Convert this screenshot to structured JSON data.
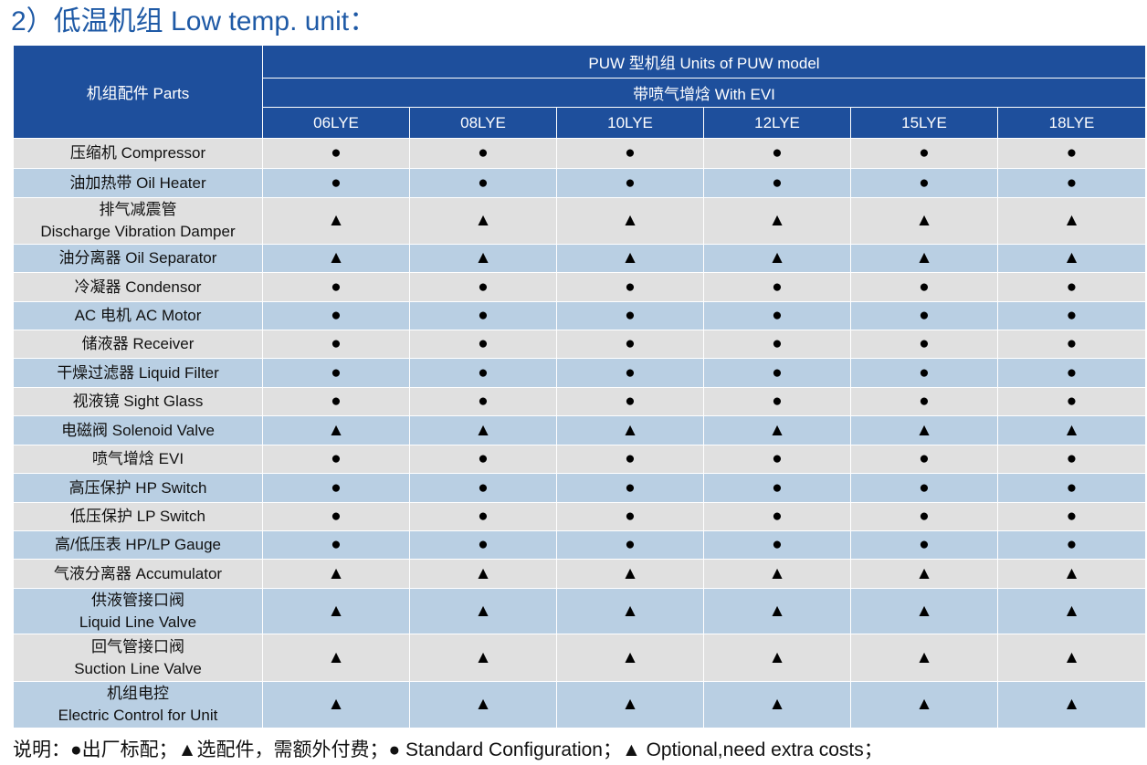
{
  "title": "2）低温机组 Low temp. unit：",
  "header": {
    "parts_label": "机组配件 Parts",
    "group_label": "PUW 型机组 Units of PUW model",
    "subgroup_label": "带喷气增焓  With EVI",
    "models": [
      "06LYE",
      "08LYE",
      "10LYE",
      "12LYE",
      "15LYE",
      "18LYE"
    ]
  },
  "symbols": {
    "standard": "●",
    "optional": "▲"
  },
  "rows": [
    {
      "name": [
        "压缩机 Compressor"
      ],
      "values": [
        "●",
        "●",
        "●",
        "●",
        "●",
        "●"
      ]
    },
    {
      "name": [
        "油加热带 Oil Heater"
      ],
      "values": [
        "●",
        "●",
        "●",
        "●",
        "●",
        "●"
      ]
    },
    {
      "name": [
        "排气减震管",
        "Discharge Vibration Damper"
      ],
      "values": [
        "▲",
        "▲",
        "▲",
        "▲",
        "▲",
        "▲"
      ]
    },
    {
      "name": [
        "油分离器 Oil Separator"
      ],
      "values": [
        "▲",
        "▲",
        "▲",
        "▲",
        "▲",
        "▲"
      ]
    },
    {
      "name": [
        "冷凝器 Condensor"
      ],
      "values": [
        "●",
        "●",
        "●",
        "●",
        "●",
        "●"
      ]
    },
    {
      "name": [
        "AC 电机 AC Motor"
      ],
      "values": [
        "●",
        "●",
        "●",
        "●",
        "●",
        "●"
      ]
    },
    {
      "name": [
        "储液器  Receiver"
      ],
      "values": [
        "●",
        "●",
        "●",
        "●",
        "●",
        "●"
      ]
    },
    {
      "name": [
        "干燥过滤器  Liquid Filter"
      ],
      "values": [
        "●",
        "●",
        "●",
        "●",
        "●",
        "●"
      ]
    },
    {
      "name": [
        "视液镜 Sight Glass"
      ],
      "values": [
        "●",
        "●",
        "●",
        "●",
        "●",
        "●"
      ]
    },
    {
      "name": [
        "电磁阀 Solenoid Valve"
      ],
      "values": [
        "▲",
        "▲",
        "▲",
        "▲",
        "▲",
        "▲"
      ]
    },
    {
      "name": [
        "喷气增焓  EVI"
      ],
      "values": [
        "●",
        "●",
        "●",
        "●",
        "●",
        "●"
      ]
    },
    {
      "name": [
        "高压保护 HP Switch"
      ],
      "values": [
        "●",
        "●",
        "●",
        "●",
        "●",
        "●"
      ]
    },
    {
      "name": [
        "低压保护 LP Switch"
      ],
      "values": [
        "●",
        "●",
        "●",
        "●",
        "●",
        "●"
      ]
    },
    {
      "name": [
        "高/低压表 HP/LP Gauge"
      ],
      "values": [
        "●",
        "●",
        "●",
        "●",
        "●",
        "●"
      ]
    },
    {
      "name": [
        "气液分离器 Accumulator"
      ],
      "values": [
        "▲",
        "▲",
        "▲",
        "▲",
        "▲",
        "▲"
      ]
    },
    {
      "name": [
        "供液管接口阀",
        "Liquid Line Valve"
      ],
      "values": [
        "▲",
        "▲",
        "▲",
        "▲",
        "▲",
        "▲"
      ]
    },
    {
      "name": [
        "回气管接口阀",
        "Suction Line Valve"
      ],
      "values": [
        "▲",
        "▲",
        "▲",
        "▲",
        "▲",
        "▲"
      ]
    },
    {
      "name": [
        "机组电控",
        "Electric Control for Unit"
      ],
      "values": [
        "▲",
        "▲",
        "▲",
        "▲",
        "▲",
        "▲"
      ]
    }
  ],
  "note": "说明：●出厂标配；▲选配件，需额外付费；● Standard Configuration；▲ Optional,need extra costs；"
}
